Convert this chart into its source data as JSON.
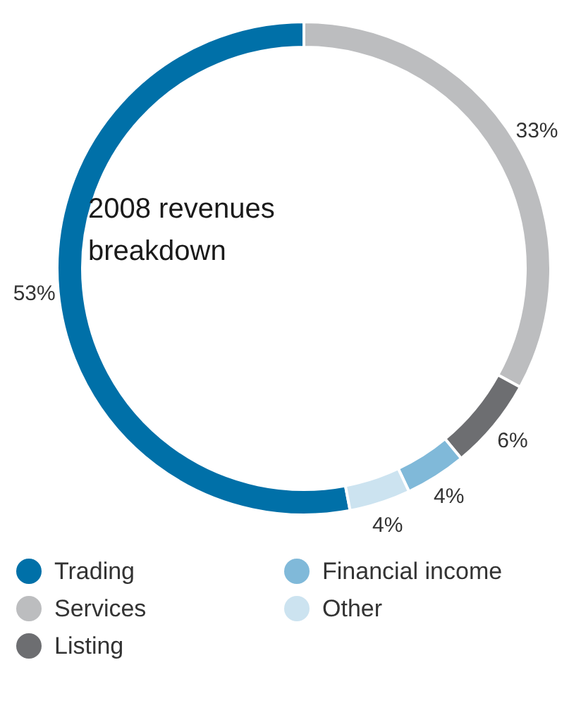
{
  "chart_data": {
    "type": "donut",
    "title": "2008 revenues breakdown",
    "categories": [
      "Trading",
      "Services",
      "Listing",
      "Financial income",
      "Other"
    ],
    "values": [
      53,
      33,
      6,
      4,
      4
    ],
    "colors": [
      "#0070a8",
      "#bcbdbf",
      "#6d6e71",
      "#80b9d9",
      "#cce3f0"
    ],
    "value_labels": [
      "53%",
      "33%",
      "6%",
      "4%",
      "4%"
    ],
    "legend": "bottom"
  }
}
